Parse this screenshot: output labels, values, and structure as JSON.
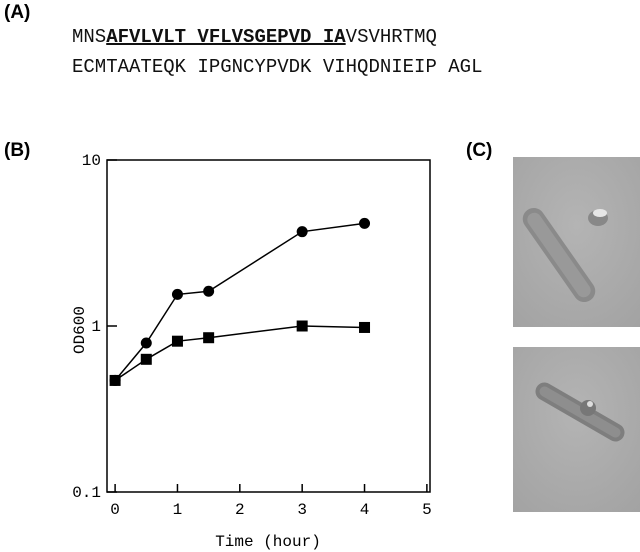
{
  "panel_labels": [
    "(A)",
    "(B)",
    "(C)"
  ],
  "sequence": {
    "line1": {
      "before": "MNS",
      "highlighted": "AFVLVLT VFLVSGEPVD IA",
      "after": "VSVHRTMQ"
    },
    "line2": "ECMTAATEQK IPGNCYPVDK VIHQDNIEIP AGL"
  },
  "chart_data": {
    "type": "line",
    "x_label": "Time (hour)",
    "y_label": "OD600",
    "x": [
      0,
      0.5,
      1,
      1.5,
      3,
      4
    ],
    "series": [
      {
        "color": "#000000",
        "marker": "circle",
        "values": [
          0.47,
          0.79,
          1.55,
          1.62,
          3.7,
          4.15
        ]
      },
      {
        "color": "#000000",
        "marker": "square",
        "values": [
          0.47,
          0.63,
          0.81,
          0.85,
          1.0,
          0.98
        ]
      }
    ],
    "xlim": [
      -0.13,
      5.05
    ],
    "xticks": [
      0,
      1,
      2,
      3,
      4,
      5
    ],
    "ylim": [
      0.1,
      10
    ],
    "yticks": [
      0.1,
      1,
      10
    ],
    "ylog": true
  }
}
